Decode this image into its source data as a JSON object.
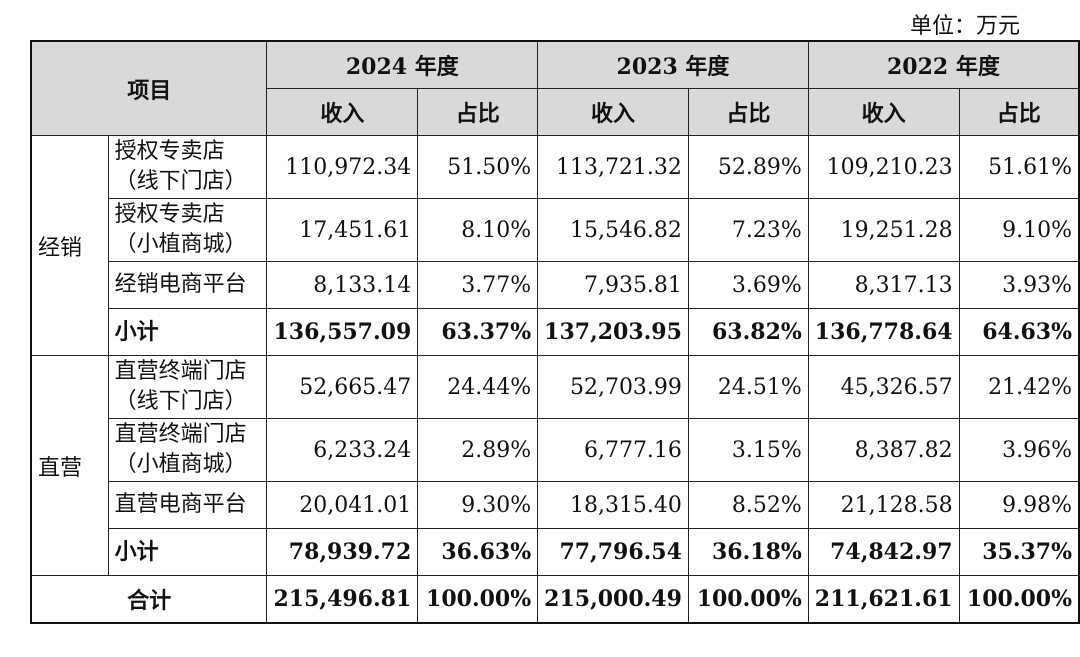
{
  "unit_label": "单位：万元",
  "header": {
    "item": "项目",
    "years": [
      "2024 年度",
      "2023 年度",
      "2022 年度"
    ],
    "income": "收入",
    "ratio": "占比"
  },
  "groups": [
    {
      "name": "经销",
      "rows": [
        {
          "label": [
            "授权专卖店",
            "（线下门店）"
          ],
          "values": [
            "110,972.34",
            "51.50%",
            "113,721.32",
            "52.89%",
            "109,210.23",
            "51.61%"
          ]
        },
        {
          "label": [
            "授权专卖店",
            "（小植商城）"
          ],
          "values": [
            "17,451.61",
            "8.10%",
            "15,546.82",
            "7.23%",
            "19,251.28",
            "9.10%"
          ]
        },
        {
          "label": [
            "经销电商平台"
          ],
          "values": [
            "8,133.14",
            "3.77%",
            "7,935.81",
            "3.69%",
            "8,317.13",
            "3.93%"
          ]
        }
      ],
      "subtotal": {
        "label": "小计",
        "values": [
          "136,557.09",
          "63.37%",
          "137,203.95",
          "63.82%",
          "136,778.64",
          "64.63%"
        ]
      }
    },
    {
      "name": "直营",
      "rows": [
        {
          "label": [
            "直营终端门店",
            "（线下门店）"
          ],
          "values": [
            "52,665.47",
            "24.44%",
            "52,703.99",
            "24.51%",
            "45,326.57",
            "21.42%"
          ]
        },
        {
          "label": [
            "直营终端门店",
            "（小植商城）"
          ],
          "values": [
            "6,233.24",
            "2.89%",
            "6,777.16",
            "3.15%",
            "8,387.82",
            "3.96%"
          ]
        },
        {
          "label": [
            "直营电商平台"
          ],
          "values": [
            "20,041.01",
            "9.30%",
            "18,315.40",
            "8.52%",
            "21,128.58",
            "9.98%"
          ]
        }
      ],
      "subtotal": {
        "label": "小计",
        "values": [
          "78,939.72",
          "36.63%",
          "77,796.54",
          "36.18%",
          "74,842.97",
          "35.37%"
        ]
      }
    }
  ],
  "total": {
    "label": "合计",
    "values": [
      "215,496.81",
      "100.00%",
      "215,000.49",
      "100.00%",
      "211,621.61",
      "100.00%"
    ]
  }
}
